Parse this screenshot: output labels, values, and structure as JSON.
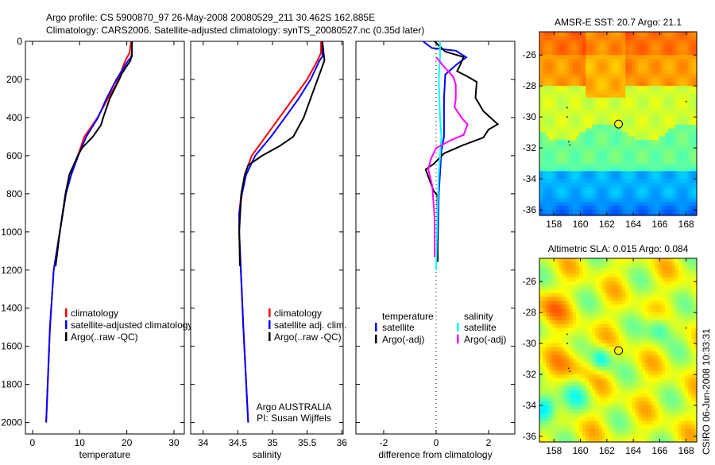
{
  "title": {
    "line1": "Argo profile: CS 5900870_97 26-May-2008 20080529_211 30.462S 162.885E",
    "line2": "Climatology: CARS2006. Satellite-adjusted climatology: synTS_20080527.nc (0.35d later)"
  },
  "side_stamp": "CSIRO 06-Jun-2008 10:33:31",
  "colors": {
    "red": "#ff0000",
    "blue": "#0000ff",
    "black": "#000000",
    "cyan": "#00ffff",
    "magenta": "#ff00ff"
  },
  "chart_data": [
    {
      "type": "line",
      "id": "temperature",
      "xlabel": "temperature",
      "ylabel": "",
      "xlim": [
        -1.5,
        32.2
      ],
      "ylim": [
        0,
        2060
      ],
      "y_reversed": true,
      "xticks": [
        0,
        10,
        20,
        30
      ],
      "yticks": [
        0,
        200,
        400,
        600,
        800,
        1000,
        1200,
        1400,
        1600,
        1800,
        2000
      ],
      "legend": [
        "climatology",
        "satellite-adjusted climatology",
        "Argo(..raw -QC)"
      ],
      "series": [
        {
          "name": "climatology",
          "color": "red",
          "depth": [
            0,
            60,
            100,
            229,
            300,
            400,
            500,
            600,
            700,
            800,
            1000,
            1200,
            1500,
            2000
          ],
          "values": [
            20.9,
            20.6,
            19.7,
            17.7,
            16.0,
            13.8,
            11.0,
            9.6,
            8.2,
            7.1,
            5.8,
            4.5,
            3.7,
            2.9
          ]
        },
        {
          "name": "satellite-adjusted climatology",
          "color": "blue",
          "depth": [
            0,
            80,
            100,
            200,
            300,
            400,
            500,
            600,
            700,
            800,
            1000,
            1200,
            1500,
            2000
          ],
          "values": [
            21.1,
            21.1,
            20.3,
            17.8,
            15.7,
            13.9,
            11.4,
            9.7,
            8.2,
            7.1,
            5.8,
            4.5,
            3.7,
            2.9
          ]
        },
        {
          "name": "Argo(..raw -QC)",
          "color": "black",
          "depth": [
            0,
            60,
            100,
            171,
            200,
            300,
            400,
            440,
            500,
            560,
            600,
            700,
            800,
            1000,
            1180
          ],
          "values": [
            21.1,
            21.1,
            20.8,
            18.9,
            18.4,
            16.4,
            15.0,
            14.5,
            12.8,
            10.5,
            9.6,
            7.8,
            7.0,
            5.8,
            4.9
          ]
        }
      ]
    },
    {
      "type": "line",
      "id": "salinity",
      "xlabel": "salinity",
      "xlim": [
        33.82,
        36.02
      ],
      "ylim": [
        0,
        2060
      ],
      "y_reversed": true,
      "xticks": [
        34,
        34.5,
        35,
        35.5,
        36
      ],
      "xticklabels": [
        "34",
        "34.5",
        "35",
        "35.5",
        "36"
      ],
      "legend": [
        "climatology",
        "satellite adj. clim.",
        "Argo(..raw -QC)"
      ],
      "annotation": [
        "Argo AUSTRALIA",
        "PI: Susan Wijffels"
      ],
      "series": [
        {
          "name": "climatology",
          "color": "red",
          "depth": [
            0,
            60,
            100,
            200,
            300,
            400,
            500,
            600,
            700,
            800,
            900,
            1000,
            1500,
            2000
          ],
          "values": [
            35.7,
            35.7,
            35.65,
            35.5,
            35.3,
            35.1,
            34.9,
            34.7,
            34.6,
            34.55,
            34.52,
            34.52,
            34.58,
            34.65
          ]
        },
        {
          "name": "satellite adj. clim.",
          "color": "blue",
          "depth": [
            0,
            80,
            100,
            200,
            300,
            400,
            500,
            600,
            700,
            800,
            900,
            1000,
            1500,
            2000
          ],
          "values": [
            35.72,
            35.72,
            35.68,
            35.55,
            35.38,
            35.18,
            34.98,
            34.75,
            34.62,
            34.56,
            34.52,
            34.52,
            34.58,
            34.65
          ]
        },
        {
          "name": "Argo(..raw -QC)",
          "color": "black",
          "depth": [
            0,
            100,
            150,
            200,
            300,
            400,
            500,
            550,
            600,
            650,
            700,
            800,
            1000,
            1180
          ],
          "values": [
            35.72,
            35.75,
            35.7,
            35.65,
            35.55,
            35.45,
            35.3,
            35.1,
            34.85,
            34.65,
            34.6,
            34.55,
            34.52,
            34.53
          ]
        }
      ]
    },
    {
      "type": "line",
      "id": "difference",
      "xlabel": "difference from climatology",
      "xlim": [
        -3.06,
        3.0
      ],
      "ylim": [
        0,
        2060
      ],
      "y_reversed": true,
      "xticks": [
        -2,
        0,
        2
      ],
      "zero_line": true,
      "legend_groups": [
        {
          "header": "temperature",
          "items": [
            "satellite",
            "Argo(-adj)"
          ]
        },
        {
          "header": "salinity",
          "items": [
            "satellite",
            "Argo(-adj)"
          ]
        }
      ],
      "series": [
        {
          "name": "temperature satellite",
          "color": "blue",
          "depth": [
            0,
            35,
            49,
            84,
            125,
            174,
            300,
            500,
            574,
            800,
            1143
          ],
          "values": [
            -0.5,
            -0.16,
            0.75,
            1.15,
            0.75,
            0.35,
            0.3,
            0.3,
            0.2,
            0.1,
            0.05
          ]
        },
        {
          "name": "temperature Argo(-adj)",
          "color": "black",
          "depth": [
            0,
            54,
            82,
            115,
            157,
            185,
            213,
            296,
            366,
            435,
            463,
            505,
            546,
            588,
            644,
            672,
            727,
            783,
            810,
            1157
          ],
          "values": [
            -0.06,
            0.35,
            1.04,
            0.95,
            0.8,
            1.2,
            1.55,
            1.5,
            1.8,
            2.35,
            2.0,
            1.8,
            1.0,
            0.3,
            -0.1,
            -0.4,
            -0.25,
            -0.1,
            0.05,
            0.06
          ]
        },
        {
          "name": "salinity satellite",
          "color": "cyan",
          "depth": [
            0,
            84,
            200,
            400,
            500,
            700,
            900,
            1199
          ],
          "values": [
            0.15,
            0.15,
            0.1,
            0.15,
            0.2,
            0.1,
            0.05,
            0.0
          ]
        },
        {
          "name": "salinity Argo(-adj)",
          "color": "magenta",
          "depth": [
            82,
            125,
            185,
            225,
            305,
            345,
            407,
            435,
            491,
            519,
            560,
            616,
            672,
            755,
            920,
            1130
          ],
          "values": [
            0.0,
            0.25,
            0.65,
            0.75,
            0.75,
            0.7,
            1.0,
            1.2,
            1.05,
            0.55,
            0.0,
            -0.2,
            -0.3,
            -0.15,
            -0.06,
            -0.06
          ]
        }
      ]
    },
    {
      "type": "heatmap",
      "id": "sst-map",
      "title": "AMSR-E SST: 20.7 Argo: 21.1",
      "xlim": [
        156.9,
        168.8
      ],
      "ylim": [
        -36.36,
        -24.5
      ],
      "xticks": [
        158,
        160,
        162,
        164,
        166,
        168
      ],
      "yticks": [
        -26,
        -28,
        -30,
        -32,
        -34,
        -36
      ],
      "marker": {
        "lon": 162.885,
        "lat": -30.462
      }
    },
    {
      "type": "heatmap",
      "id": "sla-map",
      "title": "Altimetric SLA: 0.015 Argo: 0.084",
      "xlim": [
        156.9,
        168.8
      ],
      "ylim": [
        -36.36,
        -24.5
      ],
      "xticks": [
        158,
        160,
        162,
        164,
        166,
        168
      ],
      "yticks": [
        -26,
        -28,
        -30,
        -32,
        -34,
        -36
      ],
      "marker": {
        "lon": 162.885,
        "lat": -30.462
      }
    }
  ]
}
